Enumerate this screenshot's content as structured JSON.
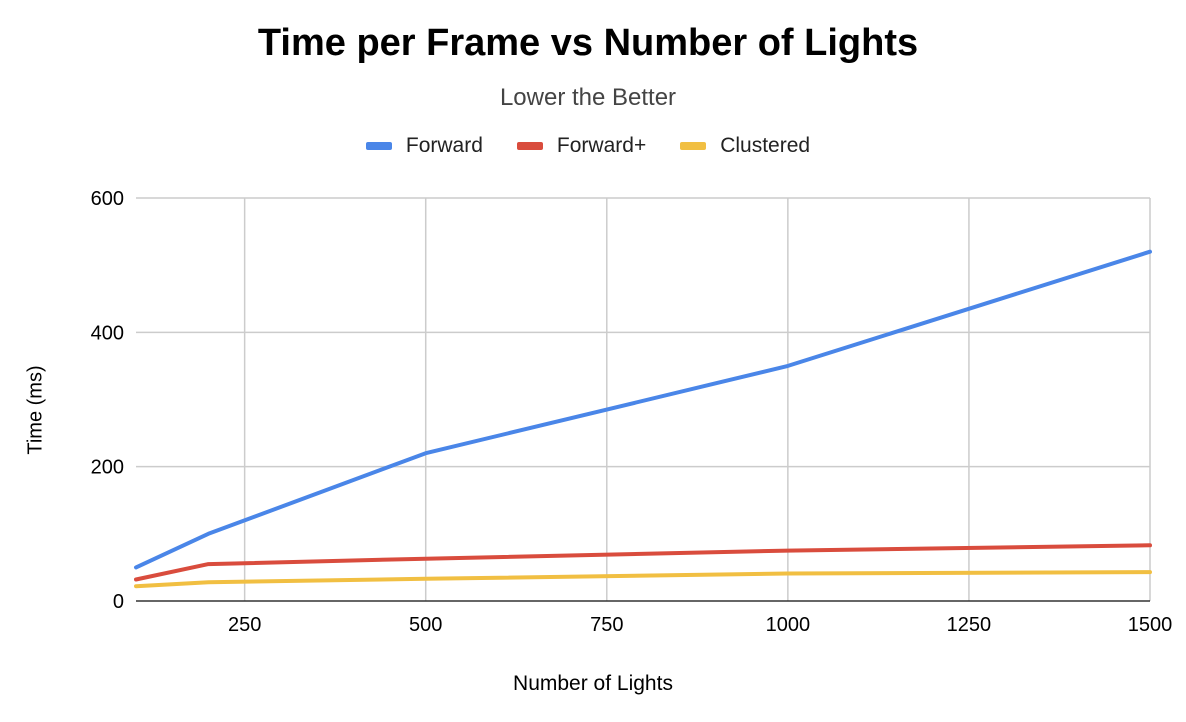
{
  "chart_data": {
    "type": "line",
    "title": "Time per Frame vs Number of Lights",
    "subtitle": "Lower the Better",
    "xlabel": "Number of Lights",
    "ylabel": "Time (ms)",
    "xlim": [
      100,
      1500
    ],
    "ylim": [
      0,
      600
    ],
    "xticks": [
      250,
      500,
      750,
      1000,
      1250,
      1500
    ],
    "yticks": [
      0,
      200,
      400,
      600
    ],
    "grid": true,
    "legend_position": "top",
    "x": [
      100,
      200,
      500,
      1000,
      1500
    ],
    "series": [
      {
        "name": "Forward",
        "color": "#4a86e8",
        "values": [
          50,
          100,
          220,
          350,
          520
        ]
      },
      {
        "name": "Forward+",
        "color": "#d94c3d",
        "values": [
          32,
          55,
          63,
          75,
          83
        ]
      },
      {
        "name": "Clustered",
        "color": "#f1bf42",
        "values": [
          22,
          28,
          33,
          41,
          43
        ]
      }
    ]
  }
}
